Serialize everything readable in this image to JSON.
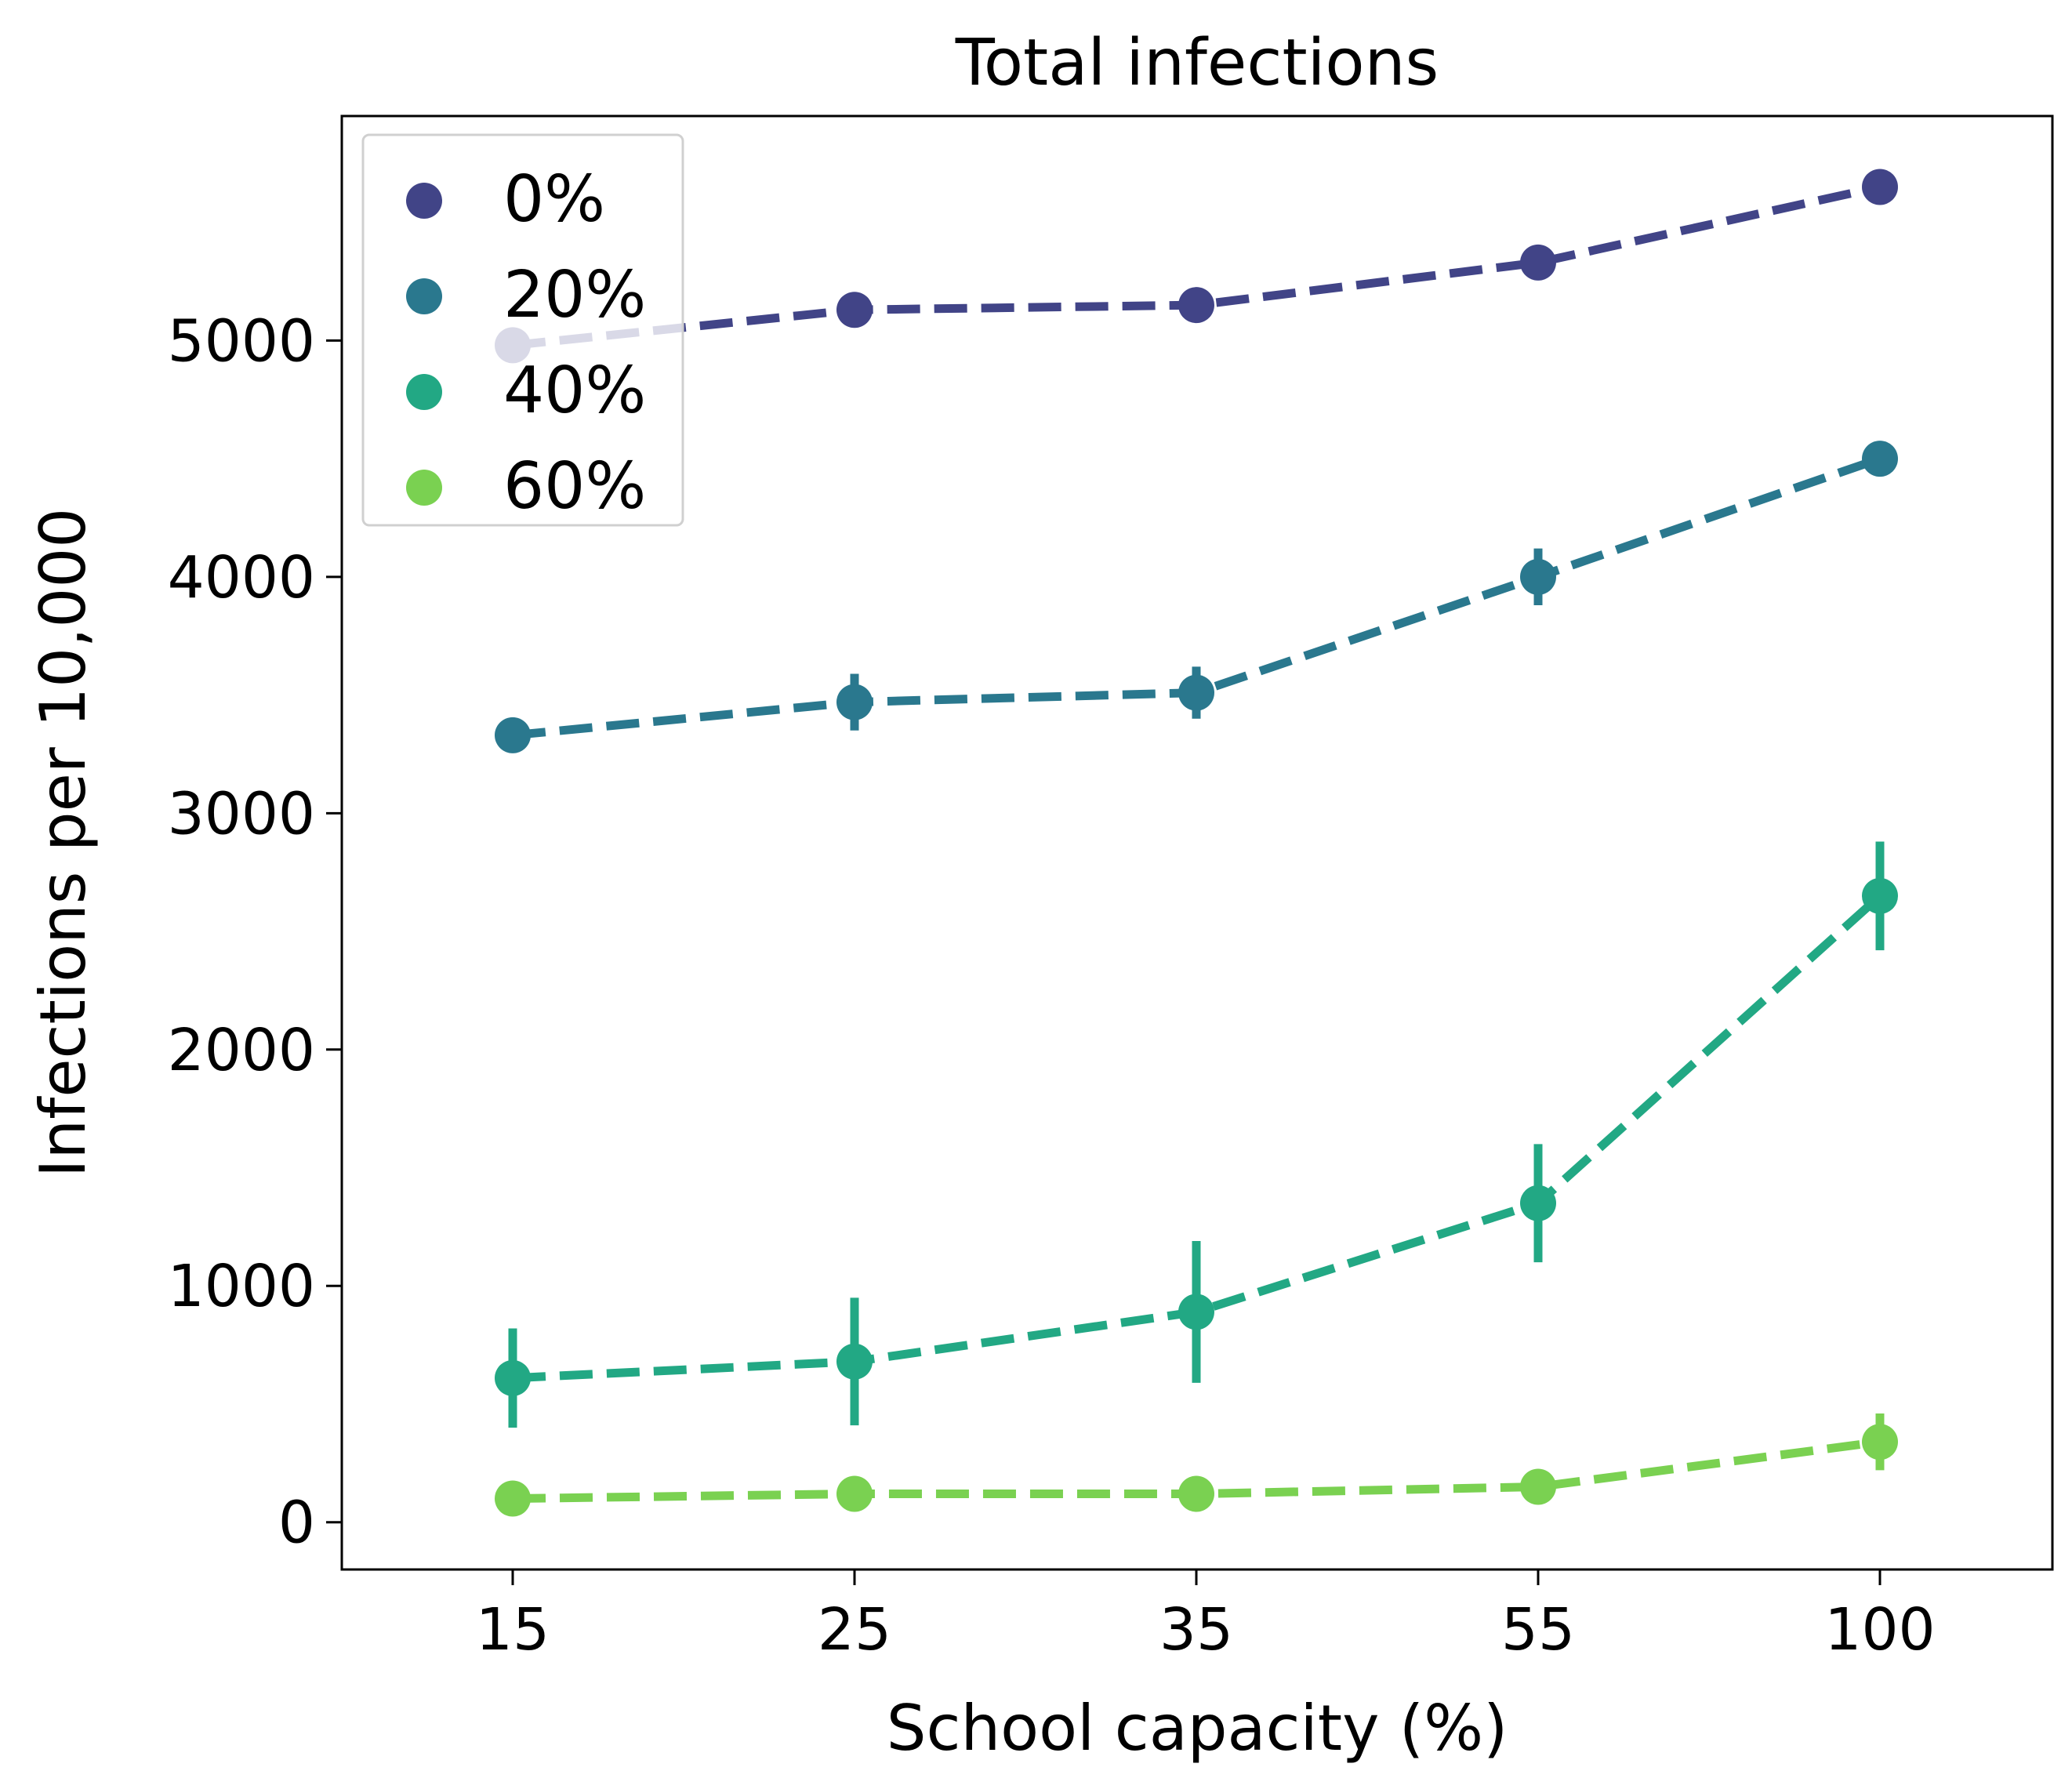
{
  "chart_data": {
    "type": "line",
    "title": "Total infections",
    "xlabel": "School capacity (%)",
    "ylabel": "Infections per 10,000",
    "categories": [
      "15",
      "25",
      "35",
      "55",
      "100"
    ],
    "ylim": [
      -200,
      5950
    ],
    "yticks": [
      "0",
      "1000",
      "2000",
      "3000",
      "4000",
      "5000"
    ],
    "legend_position": "top-left",
    "grid": false,
    "series": [
      {
        "name": "0%",
        "color": "#414487",
        "values": [
          4980,
          5130,
          5150,
          5330,
          5650
        ],
        "error": [
          30,
          30,
          30,
          30,
          30
        ]
      },
      {
        "name": "20%",
        "color": "#2a788e",
        "values": [
          3330,
          3470,
          3510,
          4000,
          4500
        ],
        "error": [
          60,
          120,
          110,
          120,
          60
        ]
      },
      {
        "name": "40%",
        "color": "#22a884",
        "values": [
          610,
          680,
          890,
          1350,
          2650
        ],
        "error": [
          210,
          270,
          300,
          250,
          230
        ]
      },
      {
        "name": "60%",
        "color": "#7ad151",
        "values": [
          100,
          120,
          120,
          150,
          340
        ],
        "error": [
          20,
          20,
          20,
          20,
          120
        ]
      }
    ]
  }
}
